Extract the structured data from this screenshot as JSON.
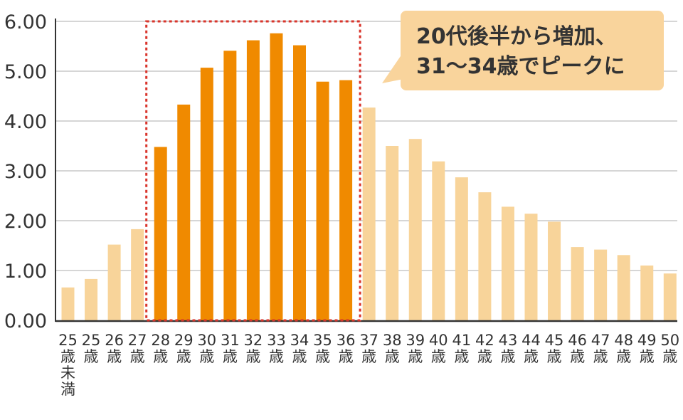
{
  "chart_data": {
    "type": "bar",
    "title": "",
    "xlabel": "",
    "ylabel": "",
    "ylim": [
      0,
      6
    ],
    "yticks": [
      "0.00",
      "1.00",
      "2.00",
      "3.00",
      "4.00",
      "5.00",
      "6.00"
    ],
    "grid": true,
    "categories": [
      [
        "25",
        "歳",
        "未",
        "満"
      ],
      [
        "25",
        "歳"
      ],
      [
        "26",
        "歳"
      ],
      [
        "27",
        "歳"
      ],
      [
        "28",
        "歳"
      ],
      [
        "29",
        "歳"
      ],
      [
        "30",
        "歳"
      ],
      [
        "31",
        "歳"
      ],
      [
        "32",
        "歳"
      ],
      [
        "33",
        "歳"
      ],
      [
        "34",
        "歳"
      ],
      [
        "35",
        "歳"
      ],
      [
        "36",
        "歳"
      ],
      [
        "37",
        "歳"
      ],
      [
        "38",
        "歳"
      ],
      [
        "39",
        "歳"
      ],
      [
        "40",
        "歳"
      ],
      [
        "41",
        "歳"
      ],
      [
        "42",
        "歳"
      ],
      [
        "43",
        "歳"
      ],
      [
        "44",
        "歳"
      ],
      [
        "45",
        "歳"
      ],
      [
        "46",
        "歳"
      ],
      [
        "47",
        "歳"
      ],
      [
        "48",
        "歳"
      ],
      [
        "49",
        "歳"
      ],
      [
        "50",
        "歳"
      ]
    ],
    "values": [
      0.66,
      0.83,
      1.52,
      1.83,
      3.48,
      4.33,
      5.07,
      5.41,
      5.62,
      5.76,
      5.52,
      4.79,
      4.82,
      4.27,
      3.5,
      3.64,
      3.19,
      2.87,
      2.57,
      2.28,
      2.14,
      1.98,
      1.47,
      1.42,
      1.31,
      1.1,
      0.94
    ],
    "highlight_range": [
      4,
      12
    ],
    "colors": {
      "highlight": "#F08A00",
      "normal": "#F8D49A",
      "grid": "#D6D6D6",
      "axis": "#333333",
      "box": "#D9342B",
      "callout_bg": "#F9D49C"
    },
    "annotation": {
      "lines": [
        "20代後半から増加、",
        "31〜34歳でピークに"
      ]
    }
  }
}
